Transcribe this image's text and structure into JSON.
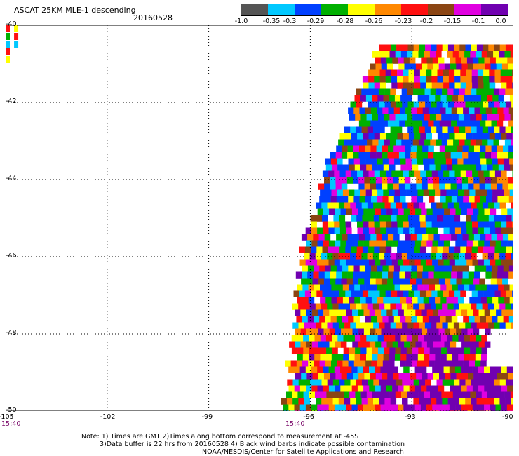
{
  "header": {
    "title": "ASCAT 25KM MLE-1 descending",
    "date": "20160528"
  },
  "colorbar": {
    "colors": [
      "#555555",
      "#00c8ff",
      "#0040ff",
      "#00b000",
      "#ffff00",
      "#ff8800",
      "#ff1010",
      "#8b4513",
      "#e000e0",
      "#7000b0"
    ],
    "labels": [
      "-1.0",
      "-0.35",
      "-0.3",
      "-0.29",
      "-0.28",
      "-0.26",
      "-0.23",
      "-0.2",
      "-0.15",
      "-0.1",
      "0.0"
    ]
  },
  "axes": {
    "lat_labels": [
      "-40",
      "-42",
      "-44",
      "-46",
      "-48",
      "-50"
    ],
    "lon_labels": [
      "-105",
      "-102",
      "-99",
      "-96",
      "-93",
      "-90"
    ],
    "times": [
      "15:40",
      "15:40"
    ]
  },
  "notes": {
    "line1": "Note: 1) Times are GMT 2)Times along bottom correspond to measurement at -45S",
    "line2": "3)Data buffer is 22 hrs from 20160528 4) Black wind barbs indicate possible contamination",
    "line3": "NOAA/NESDIS/Center for Satellite Applications and Research"
  },
  "chart_data": {
    "type": "heatmap",
    "title": "ASCAT 25KM MLE-1 descending",
    "date": "20160528",
    "lon_range": [
      -105,
      -90
    ],
    "lat_range": [
      -50,
      -40
    ],
    "grid": "dotted",
    "swath_left_edge": [
      [
        -40.5,
        -94.0
      ],
      [
        -43.5,
        -95.5
      ],
      [
        -45.5,
        -96.2
      ],
      [
        -47.5,
        -96.5
      ],
      [
        -50,
        -96.8
      ]
    ],
    "swath_right_edge": -90,
    "corner_patch": {
      "lat": [
        -40,
        -41
      ],
      "lon": [
        -105,
        -104.5
      ]
    }
  }
}
